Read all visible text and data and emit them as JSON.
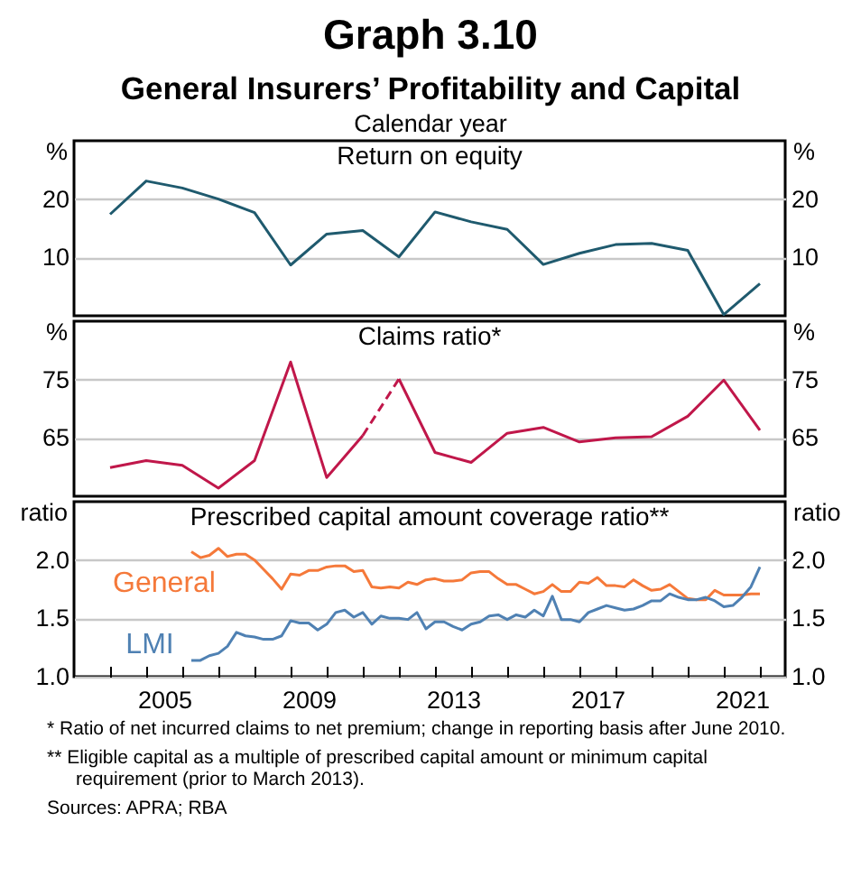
{
  "chart_data": [
    {
      "type": "line",
      "title": "Return on equity",
      "xlabel": "Calendar year",
      "ylabel": "%",
      "y2label": "%",
      "annotations": [
        "Graph 3.10",
        "General Insurers’ Profitability and Capital"
      ],
      "x": [
        2004,
        2005,
        2006,
        2007,
        2008,
        2009,
        2010,
        2011,
        2012,
        2013,
        2014,
        2015,
        2016,
        2017,
        2018,
        2019,
        2020,
        2021,
        2022
      ],
      "series": [
        {
          "color": "#1f5a6e",
          "values": [
            17.4,
            23.1,
            21.9,
            20.0,
            17.7,
            8.7,
            14.0,
            14.6,
            10.1,
            17.8,
            16.1,
            14.8,
            8.8,
            10.7,
            12.2,
            12.4,
            11.2,
            0.2,
            5.5
          ]
        }
      ],
      "xlim": [
        2003,
        2022.7
      ],
      "ylim": [
        0,
        30
      ],
      "yticks": [
        10,
        20
      ],
      "y2lim": [
        0,
        30
      ],
      "y2ticks": [
        10,
        20
      ],
      "grid": "y",
      "tick_labels": "y",
      "legend": false
    },
    {
      "type": "line",
      "title": "Claims ratio*",
      "ylabel": "%",
      "y2label": "%",
      "series": [
        {
          "color": "#c0174a",
          "x": [
            2004,
            2005,
            2006,
            2007,
            2008,
            2009,
            2010,
            2011
          ],
          "values": [
            59.9,
            61.1,
            60.3,
            56.4,
            61.1,
            78.0,
            58.2,
            65.4
          ]
        },
        {
          "color": "#c0174a",
          "line_style": "dashed",
          "x": [
            2011,
            2012
          ],
          "values": [
            65.4,
            75.1
          ]
        },
        {
          "color": "#c0174a",
          "x": [
            2012,
            2013,
            2014,
            2015,
            2016,
            2017,
            2018,
            2019,
            2020,
            2021,
            2022
          ],
          "values": [
            75.1,
            62.5,
            60.8,
            65.8,
            66.8,
            64.3,
            65.0,
            65.2,
            68.7,
            74.9,
            66.3
          ]
        }
      ],
      "xlim": [
        2003,
        2022.7
      ],
      "ylim": [
        55,
        85
      ],
      "yticks": [
        65,
        75
      ],
      "y2lim": [
        55,
        85
      ],
      "y2ticks": [
        65,
        75
      ],
      "grid": "y",
      "tick_labels": "y",
      "legend": false
    },
    {
      "type": "line",
      "title": "Prescribed capital amount coverage ratio**",
      "ylabel": "ratio",
      "y2label": "ratio",
      "annotations": [
        "* Ratio of net incurred claims to net premium; change in reporting basis after June 2010.",
        "** Eligible capital as a multiple of prescribed capital amount or minimum capital requirement (prior to March 2013).",
        "Sources: APRA; RBA"
      ],
      "x": [
        2006.25,
        2006.5,
        2006.75,
        2007,
        2007.25,
        2007.5,
        2007.75,
        2008,
        2008.25,
        2008.5,
        2008.75,
        2009,
        2009.25,
        2009.5,
        2009.75,
        2010,
        2010.25,
        2010.5,
        2010.75,
        2011,
        2011.25,
        2011.5,
        2011.75,
        2012,
        2012.25,
        2012.5,
        2012.75,
        2013,
        2013.25,
        2013.5,
        2013.75,
        2014,
        2014.25,
        2014.5,
        2014.75,
        2015,
        2015.25,
        2015.5,
        2015.75,
        2016,
        2016.25,
        2016.5,
        2016.75,
        2017,
        2017.25,
        2017.5,
        2017.75,
        2018,
        2018.25,
        2018.5,
        2018.75,
        2019,
        2019.25,
        2019.5,
        2019.75,
        2020,
        2020.25,
        2020.5,
        2020.75,
        2021,
        2021.25,
        2021.5,
        2021.75,
        2022
      ],
      "series": [
        {
          "name": "General",
          "color": "#f5793a",
          "values": [
            2.07,
            2.02,
            2.04,
            2.1,
            2.03,
            2.05,
            2.05,
            2.0,
            1.92,
            1.84,
            1.75,
            1.88,
            1.87,
            1.91,
            1.91,
            1.94,
            1.95,
            1.95,
            1.9,
            1.91,
            1.77,
            1.76,
            1.77,
            1.76,
            1.81,
            1.79,
            1.83,
            1.84,
            1.82,
            1.82,
            1.83,
            1.89,
            1.9,
            1.9,
            1.84,
            1.79,
            1.79,
            1.75,
            1.71,
            1.73,
            1.79,
            1.73,
            1.73,
            1.81,
            1.8,
            1.85,
            1.78,
            1.78,
            1.77,
            1.83,
            1.78,
            1.74,
            1.75,
            1.79,
            1.73,
            1.67,
            1.66,
            1.66,
            1.74,
            1.7,
            1.7,
            1.7,
            1.71,
            1.71
          ]
        },
        {
          "name": "LMI",
          "color": "#4f81b3",
          "values": [
            1.14,
            1.14,
            1.18,
            1.2,
            1.26,
            1.38,
            1.35,
            1.34,
            1.32,
            1.32,
            1.35,
            1.48,
            1.46,
            1.46,
            1.4,
            1.45,
            1.55,
            1.57,
            1.51,
            1.55,
            1.45,
            1.52,
            1.5,
            1.5,
            1.49,
            1.55,
            1.41,
            1.47,
            1.47,
            1.43,
            1.4,
            1.45,
            1.47,
            1.52,
            1.53,
            1.49,
            1.53,
            1.51,
            1.57,
            1.52,
            1.69,
            1.49,
            1.49,
            1.47,
            1.55,
            1.58,
            1.61,
            1.59,
            1.57,
            1.58,
            1.61,
            1.65,
            1.65,
            1.71,
            1.68,
            1.66,
            1.66,
            1.68,
            1.65,
            1.6,
            1.61,
            1.68,
            1.77,
            1.94
          ]
        }
      ],
      "xlim": [
        2003,
        2022.7
      ],
      "xticks": [
        {
          "value": 2004,
          "label": null
        },
        {
          "value": 2005,
          "label": null
        },
        {
          "value": 2005.5,
          "label": "2005"
        },
        {
          "value": 2006,
          "label": null
        },
        {
          "value": 2007,
          "label": null
        },
        {
          "value": 2008,
          "label": null
        },
        {
          "value": 2009,
          "label": null
        },
        {
          "value": 2009.5,
          "label": "2009"
        },
        {
          "value": 2010,
          "label": null
        },
        {
          "value": 2011,
          "label": null
        },
        {
          "value": 2012,
          "label": null
        },
        {
          "value": 2013,
          "label": null
        },
        {
          "value": 2013.5,
          "label": "2013"
        },
        {
          "value": 2014,
          "label": null
        },
        {
          "value": 2015,
          "label": null
        },
        {
          "value": 2016,
          "label": null
        },
        {
          "value": 2017,
          "label": null
        },
        {
          "value": 2017.5,
          "label": "2017"
        },
        {
          "value": 2018,
          "label": null
        },
        {
          "value": 2019,
          "label": null
        },
        {
          "value": 2020,
          "label": null
        },
        {
          "value": 2021,
          "label": null
        },
        {
          "value": 2021.5,
          "label": "2021"
        },
        {
          "value": 2022,
          "label": null
        }
      ],
      "ylim": [
        1.0,
        2.5
      ],
      "yticks": [
        {
          "value": 1,
          "label": "1.0"
        },
        {
          "value": 1.5,
          "label": "1.5"
        },
        {
          "value": 2,
          "label": "2.0"
        }
      ],
      "y2lim": [
        1.0,
        2.5
      ],
      "y2ticks": [
        {
          "value": 1,
          "label": "1.0"
        },
        {
          "value": 1.5,
          "label": "1.5"
        },
        {
          "value": 2,
          "label": "2.0"
        }
      ],
      "grid": "y",
      "legend": false
    }
  ]
}
